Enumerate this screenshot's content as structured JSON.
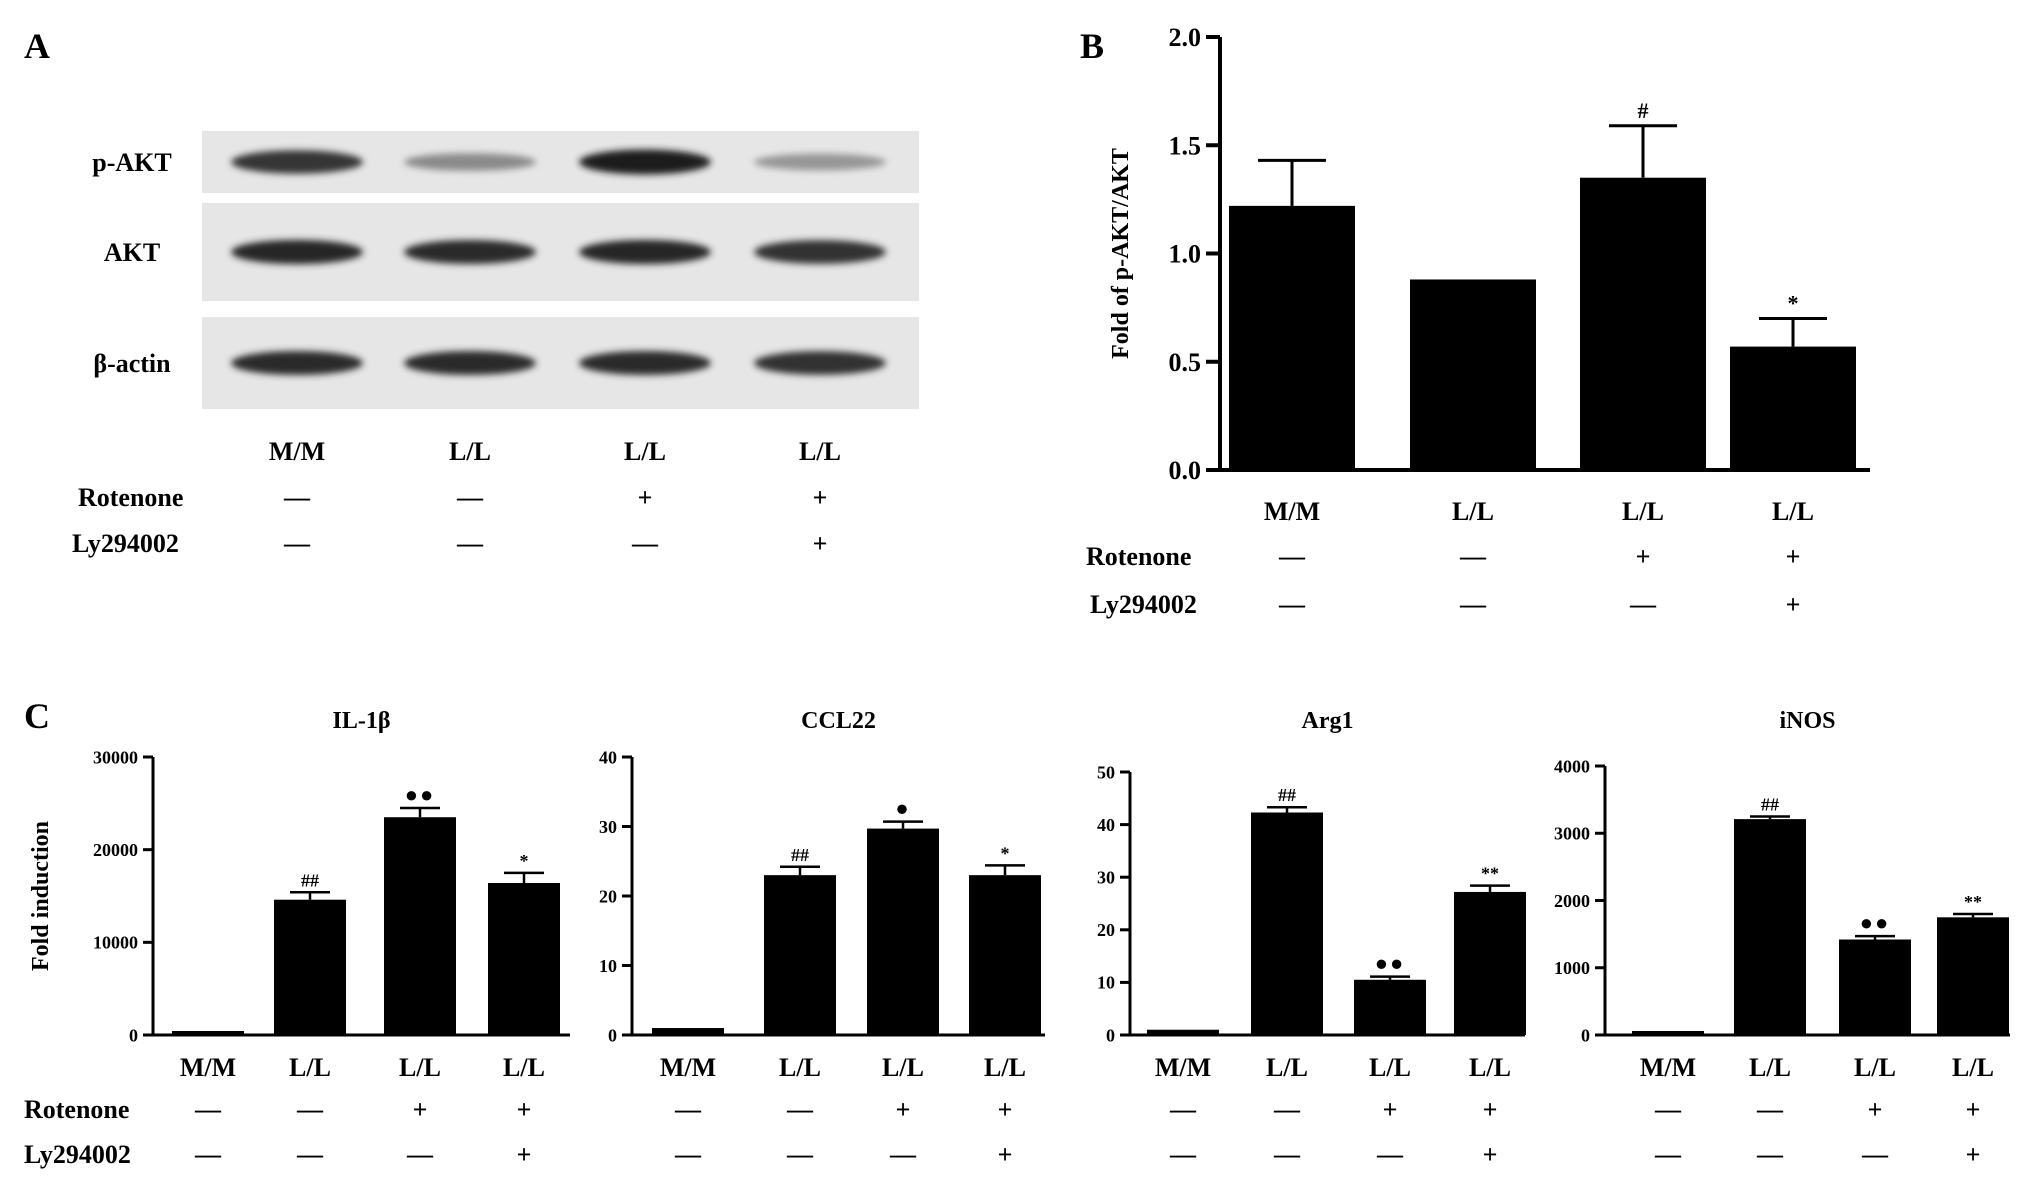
{
  "panel_labels": {
    "a": "A",
    "b": "B",
    "c": "C"
  },
  "conditions": {
    "row_labels": [
      "Rotenone",
      "Ly294002"
    ],
    "group_labels": [
      "M/M",
      "L/L",
      "L/L",
      "L/L"
    ],
    "rotenone": [
      "—",
      "—",
      "+",
      "+"
    ],
    "ly294002": [
      "—",
      "—",
      "—",
      "+"
    ]
  },
  "blot": {
    "rows": [
      {
        "label": "p-AKT",
        "band_intensity": [
          0.82,
          0.4,
          0.92,
          0.34
        ]
      },
      {
        "label": "AKT",
        "band_intensity": [
          0.88,
          0.86,
          0.88,
          0.84
        ]
      },
      {
        "label": "β-actin",
        "band_intensity": [
          0.86,
          0.86,
          0.86,
          0.84
        ]
      }
    ]
  },
  "chart_data": [
    {
      "panel": "B",
      "type": "bar",
      "title": "",
      "categories": [
        "M/M",
        "L/L",
        "L/L",
        "L/L"
      ],
      "values": [
        1.22,
        0.88,
        1.35,
        0.57
      ],
      "errors": [
        0.21,
        0.0,
        0.24,
        0.13
      ],
      "annotations": [
        "",
        "",
        "#",
        "*"
      ],
      "ylabel": "Fold of p-AKT/AKT",
      "ylim": [
        0,
        2.0
      ],
      "yticks": [
        "0.0",
        "0.5",
        "1.0",
        "1.5",
        "2.0"
      ],
      "grid": false
    },
    {
      "panel": "C",
      "type": "bar",
      "title": "IL-1β",
      "categories": [
        "M/M",
        "L/L",
        "L/L",
        "L/L"
      ],
      "values": [
        0,
        14600,
        23500,
        16400
      ],
      "errors": [
        0,
        800,
        1000,
        1100
      ],
      "annotations": [
        "",
        "##",
        "●●",
        "*"
      ],
      "ylabel": "Fold induction",
      "ylim": [
        0,
        30000
      ],
      "yticks": [
        "0",
        "10000",
        "20000",
        "30000"
      ],
      "grid": false
    },
    {
      "panel": "C",
      "type": "bar",
      "title": "CCL22",
      "categories": [
        "M/M",
        "L/L",
        "L/L",
        "L/L"
      ],
      "values": [
        1,
        23,
        29.7,
        23
      ],
      "errors": [
        0,
        1.2,
        1.0,
        1.4
      ],
      "annotations": [
        "",
        "##",
        "●",
        "*"
      ],
      "ylabel": "",
      "ylim": [
        0,
        40
      ],
      "yticks": [
        "0",
        "10",
        "20",
        "30",
        "40"
      ],
      "grid": false
    },
    {
      "panel": "C",
      "type": "bar",
      "title": "Arg1",
      "categories": [
        "M/M",
        "L/L",
        "L/L",
        "L/L"
      ],
      "values": [
        1,
        42.3,
        10.5,
        27.2
      ],
      "errors": [
        0,
        1.0,
        0.6,
        1.2
      ],
      "annotations": [
        "",
        "##",
        "●●",
        "**"
      ],
      "ylabel": "",
      "ylim": [
        0,
        50
      ],
      "yticks": [
        "0",
        "10",
        "20",
        "30",
        "40",
        "50"
      ],
      "grid": false
    },
    {
      "panel": "C",
      "type": "bar",
      "title": "iNOS",
      "categories": [
        "M/M",
        "L/L",
        "L/L",
        "L/L"
      ],
      "values": [
        0,
        3210,
        1420,
        1750
      ],
      "errors": [
        0,
        40,
        50,
        50
      ],
      "annotations": [
        "",
        "##",
        "●●",
        "**"
      ],
      "ylabel": "",
      "ylim": [
        0,
        4000
      ],
      "yticks": [
        "0",
        "1000",
        "2000",
        "3000",
        "4000"
      ],
      "grid": false
    }
  ]
}
